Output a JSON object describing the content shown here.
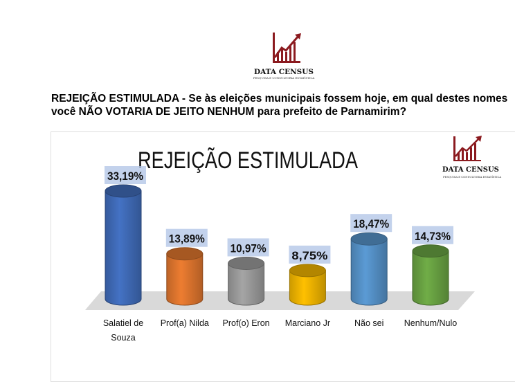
{
  "logo": {
    "name": "DATA CENSUS",
    "tagline": "PESQUISA E CONSULTORIA ESTATÍSTICA",
    "color": "#8b1a1f"
  },
  "question": "REJEIÇÃO ESTIMULADA - Se às eleições municipais fossem hoje, em qual destes nomes você NÃO VOTARIA DE JEITO NENHUM para prefeito de Parnamirim?",
  "chart_data": {
    "type": "bar",
    "title": "REJEIÇÃO ESTIMULADA",
    "categories": [
      "Salatiel de Souza",
      "Prof(a) Nilda",
      "Prof(o) Eron",
      "Marciano Jr",
      "Não sei",
      "Nenhum/Nulo"
    ],
    "category_lines": [
      [
        "Salatiel de",
        "Souza"
      ],
      [
        "Prof(a) Nilda"
      ],
      [
        "Prof(o) Eron"
      ],
      [
        "Marciano Jr"
      ],
      [
        "Não sei"
      ],
      [
        "Nenhum/Nulo"
      ]
    ],
    "values": [
      33.19,
      13.89,
      10.97,
      8.75,
      18.47,
      14.73
    ],
    "labels": [
      "33,19%",
      "13,89%",
      "10,97%",
      "8,75%",
      "18,47%",
      "14,73%"
    ],
    "colors": [
      "#4472c4",
      "#ed7d31",
      "#a5a5a5",
      "#ffc000",
      "#5b9bd5",
      "#70ad47"
    ],
    "grid": false,
    "ylim": [
      0,
      35
    ]
  }
}
